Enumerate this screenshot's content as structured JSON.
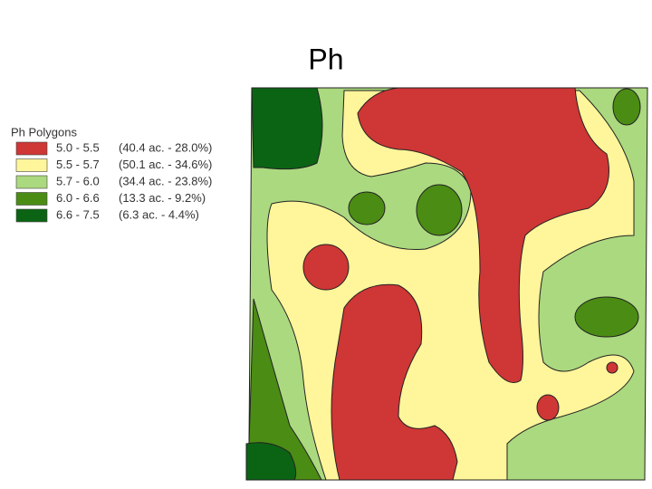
{
  "title": "Ph",
  "legend": {
    "title": "Ph Polygons",
    "items": [
      {
        "range": "5.0 - 5.5",
        "detail": "(40.4 ac. - 28.0%)",
        "color": "#cf3636"
      },
      {
        "range": "5.5 - 5.7",
        "detail": "(50.1 ac. - 34.6%)",
        "color": "#fff59a"
      },
      {
        "range": "5.7 - 6.0",
        "detail": "(34.4 ac. - 23.8%)",
        "color": "#abd97f"
      },
      {
        "range": "6.0 - 6.6",
        "detail": "(13.3 ac. - 9.2%)",
        "color": "#4b8c14"
      },
      {
        "range": "6.6 - 7.5",
        "detail": "(6.3 ac. - 4.4%)",
        "color": "#0b6414"
      }
    ]
  }
}
